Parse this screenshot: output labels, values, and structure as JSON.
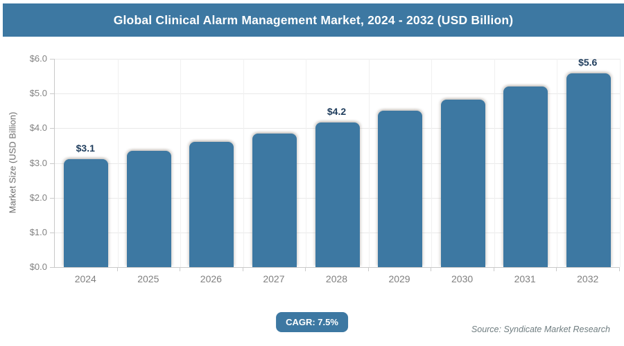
{
  "header": {
    "title": "Global Clinical Alarm Management Market, 2024 - 2032 (USD Billion)"
  },
  "chart_data": {
    "type": "bar",
    "title": "Global Clinical Alarm Management Market, 2024 - 2032 (USD Billion)",
    "categories": [
      "2024",
      "2025",
      "2026",
      "2027",
      "2028",
      "2029",
      "2030",
      "2031",
      "2032"
    ],
    "values": [
      3.1,
      3.35,
      3.6,
      3.85,
      4.17,
      4.5,
      4.83,
      5.2,
      5.58
    ],
    "point_labels": [
      "$3.1",
      "",
      "",
      "",
      "$4.2",
      "",
      "",
      "",
      "$5.6"
    ],
    "xlabel": "",
    "ylabel": "Market Size (USD Billion)",
    "ylim": [
      0,
      6
    ],
    "ytick_values": [
      0,
      1,
      2,
      3,
      4,
      5,
      6
    ],
    "ytick_labels": [
      "$0.0",
      "$1.0",
      "$2.0",
      "$3.0",
      "$4.0",
      "$5.0",
      "$6.0"
    ],
    "grid": true,
    "legend": "none",
    "bar_color": "#3d78a2"
  },
  "badge": {
    "label": "CAGR: 7.5%"
  },
  "source": {
    "text": "Source: Syndicate Market Research"
  },
  "colors": {
    "accent_blue": "#3d78a2",
    "header_text": "#ffffff",
    "data_label": "#1e3c5c",
    "axis_text": "#828282",
    "grid_line": "#e9e9e9",
    "axis_line": "#c9c9c9",
    "source_text": "#6f7d80"
  }
}
